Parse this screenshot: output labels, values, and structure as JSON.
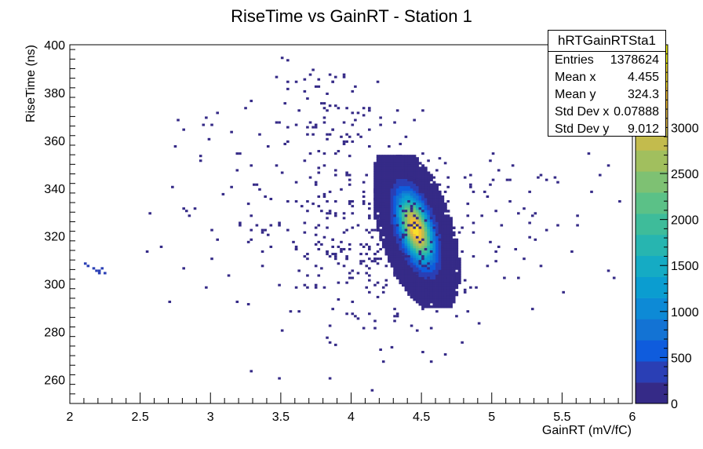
{
  "chart_data": {
    "type": "heatmap",
    "title": "RiseTime vs GainRT - Station 1",
    "xlabel": "GainRT (mV/fC)",
    "ylabel": "RiseTime (ns)",
    "xlim": [
      2,
      6
    ],
    "ylim": [
      250,
      400
    ],
    "x_ticks": [
      "2",
      "2.5",
      "3",
      "3.5",
      "4",
      "4.5",
      "5",
      "5.5",
      "6"
    ],
    "y_ticks": [
      "260",
      "280",
      "300",
      "320",
      "340",
      "360",
      "380",
      "400"
    ],
    "z_ticks": [
      "0",
      "500",
      "1000",
      "1500",
      "2000",
      "2500",
      "3000"
    ],
    "zlim": [
      0,
      3900
    ],
    "colormap": [
      "#352a87",
      "#2a3fb5",
      "#0f5cdd",
      "#1373d4",
      "#0d8ad6",
      "#0b9dd0",
      "#15abc4",
      "#27b5b0",
      "#3ebc9a",
      "#5bc187",
      "#7ec173",
      "#a1bf5e",
      "#c3bb4d",
      "#dfb845",
      "#f4c034",
      "#f9df2b",
      "#f9fb0e"
    ],
    "cluster": {
      "center_x": 4.46,
      "center_y": 323,
      "sigma_x": 0.08,
      "sigma_y": 9,
      "correlation": -0.5,
      "peak": 3600
    },
    "grid": false,
    "stats_box": {
      "title": "hRTGainRTSta1",
      "rows": [
        {
          "label": "Entries",
          "value": "1378624"
        },
        {
          "label": "Mean x",
          "value": "4.455"
        },
        {
          "label": "Mean y",
          "value": "324.3"
        },
        {
          "label": "Std Dev x",
          "value": "0.07888"
        },
        {
          "label": "Std Dev y",
          "value": "9.012"
        }
      ],
      "position": "top-right"
    }
  }
}
